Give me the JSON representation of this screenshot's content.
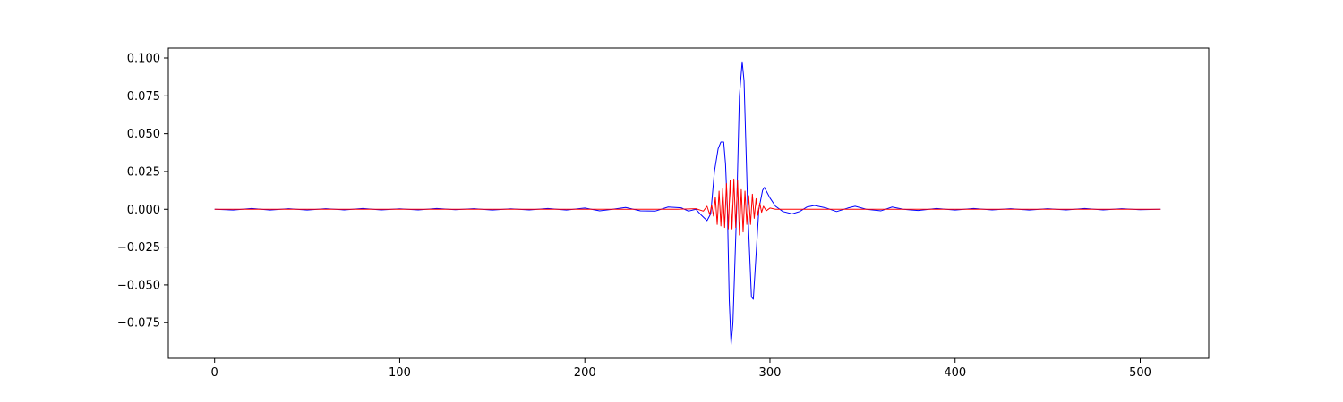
{
  "chart_data": {
    "type": "line",
    "title": "",
    "xlabel": "",
    "ylabel": "",
    "xlim": [
      -25,
      537
    ],
    "ylim": [
      -0.0985,
      0.1065
    ],
    "grid": false,
    "legend": "none",
    "xticks": [
      0,
      100,
      200,
      300,
      400,
      500
    ],
    "xtick_labels": [
      "0",
      "100",
      "200",
      "300",
      "400",
      "500"
    ],
    "yticks": [
      0.1,
      0.075,
      0.05,
      0.025,
      0.0,
      -0.025,
      -0.05,
      -0.075
    ],
    "ytick_labels": [
      "0.100",
      "0.075",
      "0.050",
      "0.025",
      "0.000",
      "−0.025",
      "−0.050",
      "−0.075"
    ],
    "series": [
      {
        "name": "blue",
        "color": "#0000ff",
        "points": [
          [
            0,
            0.0
          ],
          [
            10,
            -0.0005
          ],
          [
            20,
            0.0005
          ],
          [
            30,
            -0.0005
          ],
          [
            40,
            0.0004
          ],
          [
            50,
            -0.0005
          ],
          [
            60,
            0.0004
          ],
          [
            70,
            -0.0004
          ],
          [
            80,
            0.0005
          ],
          [
            90,
            -0.0004
          ],
          [
            100,
            0.0003
          ],
          [
            110,
            -0.0004
          ],
          [
            120,
            0.0005
          ],
          [
            130,
            -0.0003
          ],
          [
            140,
            0.0004
          ],
          [
            150,
            -0.0005
          ],
          [
            160,
            0.0003
          ],
          [
            170,
            -0.0004
          ],
          [
            180,
            0.0005
          ],
          [
            190,
            -0.0005
          ],
          [
            200,
            0.0008
          ],
          [
            208,
            -0.001
          ],
          [
            215,
            0.0
          ],
          [
            222,
            0.0012
          ],
          [
            230,
            -0.001
          ],
          [
            238,
            -0.0012
          ],
          [
            245,
            0.0015
          ],
          [
            252,
            0.001
          ],
          [
            256,
            -0.0012
          ],
          [
            260,
            0.0
          ],
          [
            263,
            -0.004
          ],
          [
            266,
            -0.0075
          ],
          [
            268,
            -0.003
          ],
          [
            270,
            0.025
          ],
          [
            272,
            0.04
          ],
          [
            273.5,
            0.0445
          ],
          [
            275,
            0.0445
          ],
          [
            276,
            0.03
          ],
          [
            277,
            0.0
          ],
          [
            278,
            -0.06
          ],
          [
            279,
            -0.0895
          ],
          [
            280,
            -0.075
          ],
          [
            282,
            0.0
          ],
          [
            283.5,
            0.075
          ],
          [
            285,
            0.0975
          ],
          [
            286,
            0.085
          ],
          [
            288,
            0.0
          ],
          [
            290,
            -0.058
          ],
          [
            291,
            -0.0595
          ],
          [
            292,
            -0.04
          ],
          [
            294,
            0.0
          ],
          [
            296,
            0.0125
          ],
          [
            297,
            0.0145
          ],
          [
            300,
            0.0075
          ],
          [
            303,
            0.002
          ],
          [
            307,
            -0.0015
          ],
          [
            312,
            -0.003
          ],
          [
            316,
            -0.0015
          ],
          [
            320,
            0.0015
          ],
          [
            324,
            0.0025
          ],
          [
            330,
            0.001
          ],
          [
            336,
            -0.0015
          ],
          [
            342,
            0.0008
          ],
          [
            346,
            0.002
          ],
          [
            352,
            0.0
          ],
          [
            360,
            -0.001
          ],
          [
            366,
            0.0015
          ],
          [
            372,
            0.0
          ],
          [
            380,
            -0.0008
          ],
          [
            390,
            0.0005
          ],
          [
            400,
            -0.0005
          ],
          [
            410,
            0.0005
          ],
          [
            420,
            -0.0004
          ],
          [
            430,
            0.0004
          ],
          [
            440,
            -0.0005
          ],
          [
            450,
            0.0004
          ],
          [
            460,
            -0.0004
          ],
          [
            470,
            0.0005
          ],
          [
            480,
            -0.0004
          ],
          [
            490,
            0.0004
          ],
          [
            500,
            -0.0003
          ],
          [
            511,
            0.0
          ]
        ]
      },
      {
        "name": "red",
        "color": "#ff0000",
        "points": [
          [
            0,
            0.0
          ],
          [
            200,
            0.0
          ],
          [
            230,
            0.0
          ],
          [
            250,
            0.0
          ],
          [
            260,
            0.0004
          ],
          [
            264,
            -0.0012
          ],
          [
            266,
            0.002
          ],
          [
            267.5,
            -0.0035
          ],
          [
            268.5,
            0.003
          ],
          [
            269.5,
            -0.0045
          ],
          [
            270.5,
            0.008
          ],
          [
            271.5,
            -0.01
          ],
          [
            272.5,
            0.012
          ],
          [
            273.5,
            -0.011
          ],
          [
            274.5,
            0.014
          ],
          [
            275.5,
            -0.012
          ],
          [
            276.5,
            0.017
          ],
          [
            277.5,
            -0.013
          ],
          [
            278.5,
            0.019
          ],
          [
            279.5,
            -0.013
          ],
          [
            280.5,
            0.02
          ],
          [
            281.5,
            -0.012
          ],
          [
            282.5,
            0.019
          ],
          [
            283.5,
            -0.017
          ],
          [
            284.5,
            0.013
          ],
          [
            285.5,
            -0.015
          ],
          [
            286.5,
            0.012
          ],
          [
            287.5,
            -0.01
          ],
          [
            288.5,
            0.009
          ],
          [
            289.5,
            -0.01
          ],
          [
            290.5,
            0.01
          ],
          [
            291.5,
            -0.006
          ],
          [
            292.5,
            0.007
          ],
          [
            293.5,
            -0.004
          ],
          [
            294.5,
            0.004
          ],
          [
            295.5,
            -0.002
          ],
          [
            296.5,
            0.002
          ],
          [
            298,
            -0.001
          ],
          [
            300,
            0.0008
          ],
          [
            303,
            0.0
          ],
          [
            310,
            0.0
          ],
          [
            400,
            0.0
          ],
          [
            511,
            0.0
          ]
        ]
      }
    ]
  }
}
